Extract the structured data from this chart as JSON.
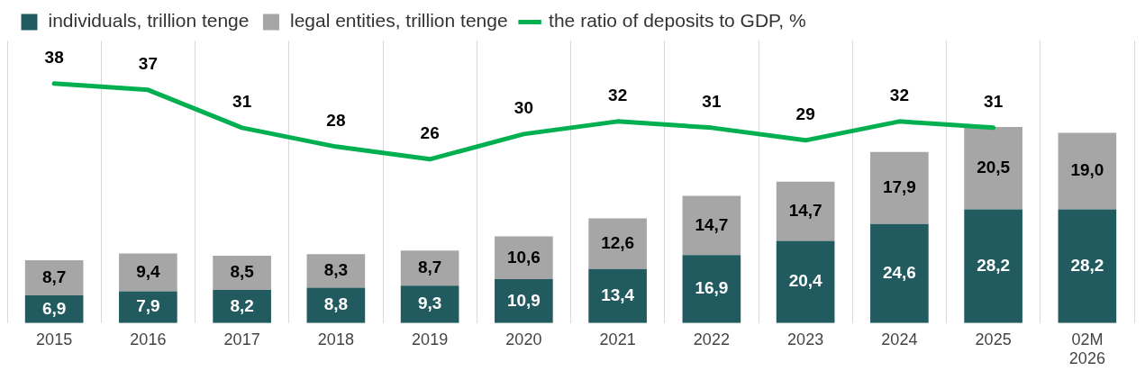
{
  "chart_data": {
    "type": "bar",
    "stacked": true,
    "categories": [
      "2015",
      "2016",
      "2017",
      "2018",
      "2019",
      "2020",
      "2021",
      "2022",
      "2023",
      "2024",
      "2025",
      "02M 2026"
    ],
    "series": [
      {
        "name": "individuals, trillion tenge",
        "color": "#215a5f",
        "values": [
          6.9,
          7.9,
          8.2,
          8.8,
          9.3,
          10.9,
          13.4,
          16.9,
          20.4,
          24.6,
          28.2,
          28.2
        ],
        "value_labels": [
          "6,9",
          "7,9",
          "8,2",
          "8,8",
          "9,3",
          "10,9",
          "13,4",
          "16,9",
          "20,4",
          "24,6",
          "28,2",
          "28,2"
        ]
      },
      {
        "name": "legal entities, trillion tenge",
        "color": "#a6a6a6",
        "values": [
          8.7,
          9.4,
          8.5,
          8.3,
          8.7,
          10.6,
          12.6,
          14.7,
          14.7,
          17.9,
          20.5,
          19.0
        ],
        "value_labels": [
          "8,7",
          "9,4",
          "8,5",
          "8,3",
          "8,7",
          "10,6",
          "12,6",
          "14,7",
          "14,7",
          "17,9",
          "20,5",
          "19,0"
        ]
      },
      {
        "name": "the ratio of deposits to GDP, %",
        "type": "line",
        "axis": "y2",
        "color": "#00b050",
        "values": [
          38,
          37,
          31,
          28,
          26,
          30,
          32,
          31,
          29,
          32,
          31,
          null
        ],
        "value_labels": [
          "38",
          "37",
          "31",
          "28",
          "26",
          "30",
          "32",
          "31",
          "29",
          "32",
          "31",
          null
        ]
      }
    ],
    "grid": "x",
    "legend": "top",
    "marker": "none",
    "tick_labels": "x"
  }
}
